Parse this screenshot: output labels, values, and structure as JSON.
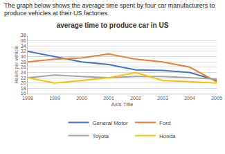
{
  "caption": "The graph below shows the average time spent by four car manufacturers to produce vehicles at their US factories.",
  "chart_data": {
    "type": "line",
    "title": "average time to produce car in US",
    "x_label": "Axis Title",
    "y_label": "Hours per vehicle",
    "x": [
      1998,
      1999,
      2000,
      2001,
      2002,
      2003,
      2004,
      2005
    ],
    "series": [
      {
        "name": "General Motor",
        "color": "#4472c4",
        "values": [
          32,
          30,
          28,
          27,
          25,
          24.8,
          24,
          21
        ]
      },
      {
        "name": "Ford",
        "color": "#ed7d31",
        "values": [
          28,
          29,
          29.5,
          31,
          29,
          28,
          26,
          20.5
        ]
      },
      {
        "name": "Toyota",
        "color": "#a5a5a5",
        "values": [
          22,
          23,
          22.5,
          22,
          22.5,
          22.5,
          22,
          21.5
        ]
      },
      {
        "name": "Honda",
        "color": "#ffc000",
        "values": [
          22,
          20,
          21,
          22,
          24,
          21,
          20.5,
          20
        ]
      }
    ],
    "xlim": [
      1998,
      2005
    ],
    "xticks": [
      1998,
      1999,
      2000,
      2001,
      2002,
      2003,
      2004,
      2005
    ],
    "ylim": [
      16,
      38
    ],
    "yticks": [
      16,
      18,
      20,
      22,
      24,
      26,
      28,
      30,
      32,
      34,
      36,
      38
    ],
    "grid": true,
    "legend": "bottom"
  }
}
